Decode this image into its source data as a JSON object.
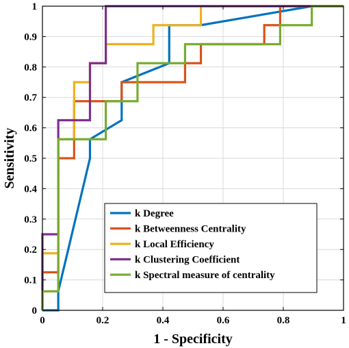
{
  "chart_data": {
    "type": "line",
    "xlabel": "1 - Specificity",
    "ylabel": "Sensitivity",
    "xlim": [
      0,
      1
    ],
    "ylim": [
      0,
      1
    ],
    "xticks": [
      0,
      0.2,
      0.4,
      0.6,
      0.8,
      1
    ],
    "yticks": [
      0,
      0.1,
      0.2,
      0.3,
      0.4,
      0.5,
      0.6,
      0.7,
      0.8,
      0.9,
      1
    ],
    "grid": true,
    "legend_position": "bottom-right",
    "series": [
      {
        "name": "k Degree",
        "color": "#0072BD",
        "x": [
          0,
          0.0526,
          0.0526,
          0.1579,
          0.1579,
          0.2632,
          0.2632,
          0.2632,
          0.4211,
          0.4211,
          0.5263,
          0.5263,
          0.8947,
          0.8947,
          1
        ],
        "y": [
          0,
          0,
          0.0625,
          0.5,
          0.5625,
          0.625,
          0.6875,
          0.75,
          0.8125,
          0.9375,
          0.9375,
          0.9375,
          1,
          1,
          1
        ]
      },
      {
        "name": "k Betweenness Centrality",
        "color": "#D95319",
        "x": [
          0,
          0,
          0.0526,
          0.0526,
          0.1053,
          0.1053,
          0.2105,
          0.2105,
          0.2632,
          0.2632,
          0.4737,
          0.4737,
          0.5263,
          0.5263,
          0.7368,
          0.7368,
          0.7895,
          0.7895,
          1
        ],
        "y": [
          0,
          0.125,
          0.125,
          0.5,
          0.5,
          0.6875,
          0.6875,
          0.6875,
          0.6875,
          0.75,
          0.75,
          0.8125,
          0.8125,
          0.875,
          0.875,
          0.9375,
          0.9375,
          1,
          1
        ]
      },
      {
        "name": "k Local Efficiency",
        "color": "#EDB120",
        "x": [
          0,
          0,
          0.0526,
          0.0526,
          0.1053,
          0.1053,
          0.1579,
          0.1579,
          0.2105,
          0.2105,
          0.3684,
          0.3684,
          0.5263,
          0.5263,
          1
        ],
        "y": [
          0,
          0.1875,
          0.1875,
          0.5625,
          0.5625,
          0.75,
          0.75,
          0.8125,
          0.8125,
          0.875,
          0.875,
          0.9375,
          0.9375,
          1,
          1
        ]
      },
      {
        "name": "k Clustering Coefficient",
        "color": "#7E2F8E",
        "x": [
          0,
          0,
          0.0526,
          0.0526,
          0.1579,
          0.1579,
          0.2105,
          0.2105,
          1
        ],
        "y": [
          0,
          0.25,
          0.25,
          0.625,
          0.625,
          0.8125,
          0.8125,
          1,
          1
        ]
      },
      {
        "name": "k Spectral measure of centrality",
        "color": "#77AC30",
        "x": [
          0,
          0,
          0.0526,
          0.0526,
          0.2105,
          0.2105,
          0.3158,
          0.3158,
          0.4737,
          0.4737,
          0.7895,
          0.7895,
          0.8947,
          0.8947,
          1
        ],
        "y": [
          0,
          0.0625,
          0.0625,
          0.5625,
          0.5625,
          0.6875,
          0.6875,
          0.8125,
          0.8125,
          0.875,
          0.875,
          0.9375,
          0.9375,
          1,
          1
        ]
      }
    ]
  }
}
